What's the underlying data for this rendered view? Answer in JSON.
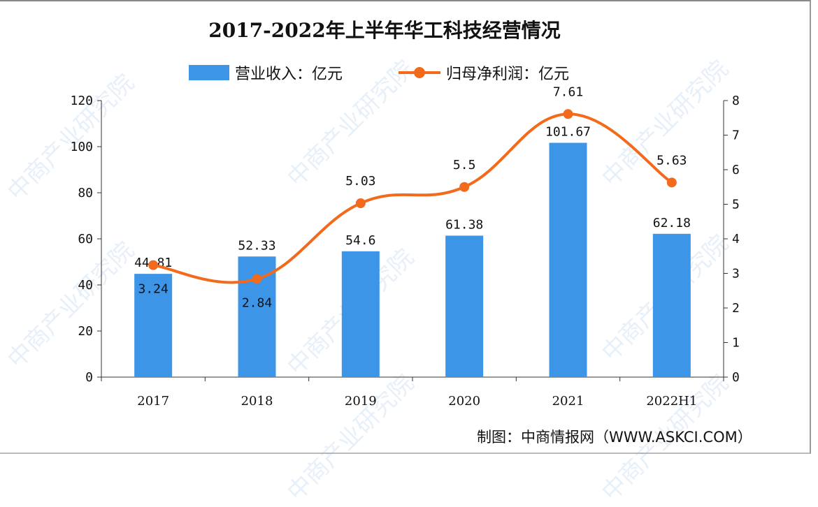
{
  "chart_data": {
    "type": "bar+line",
    "title": "2017-2022年上半年华工科技经营情况",
    "categories": [
      "2017",
      "2018",
      "2019",
      "2020",
      "2021",
      "2022H1"
    ],
    "series": [
      {
        "name": "营业收入：亿元",
        "type": "bar",
        "axis": "left",
        "color": "#3d95e8",
        "values": [
          44.81,
          52.33,
          54.6,
          61.38,
          101.67,
          62.18
        ]
      },
      {
        "name": "归母净利润：亿元",
        "type": "line",
        "axis": "right",
        "color": "#f26b1d",
        "values": [
          3.24,
          2.84,
          5.03,
          5.5,
          7.61,
          5.63
        ]
      }
    ],
    "y_left": {
      "lim": [
        0,
        120
      ],
      "ticks": [
        "0",
        "20",
        "40",
        "60",
        "80",
        "100",
        "120"
      ]
    },
    "y_right": {
      "lim": [
        0,
        8
      ],
      "ticks": [
        "0",
        "1",
        "2",
        "3",
        "4",
        "5",
        "6",
        "7",
        "8"
      ]
    },
    "legend": "top",
    "grid": false
  },
  "source": "制图：中商情报网（WWW.ASKCI.COM）",
  "watermark": "中商产业研究院"
}
